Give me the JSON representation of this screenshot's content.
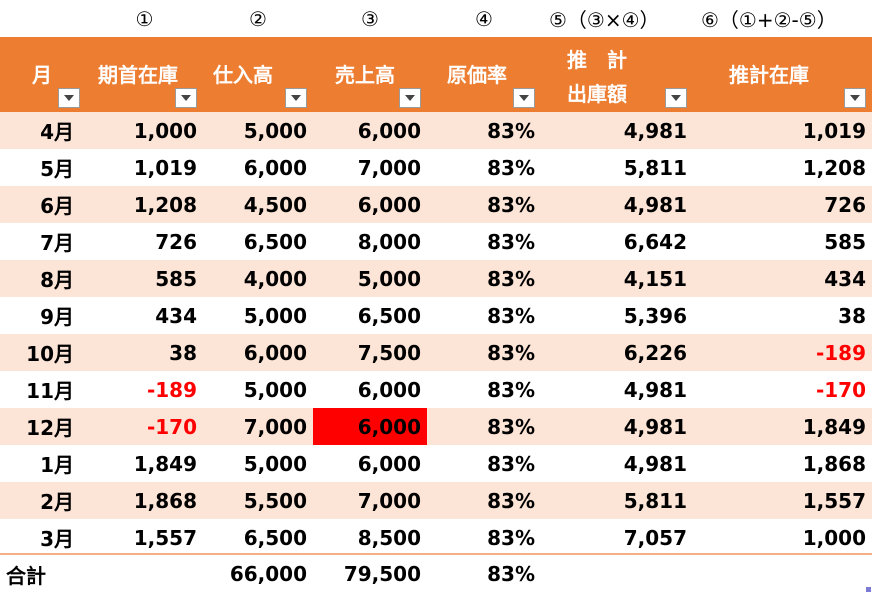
{
  "markers": [
    "",
    "①",
    "②",
    "③",
    "④",
    "⑤（③×④）",
    "⑥（①+②-⑤）"
  ],
  "headers": [
    {
      "text": "月"
    },
    {
      "text": "期首在庫"
    },
    {
      "text": "仕入高"
    },
    {
      "text": "売上高"
    },
    {
      "text": "原価率"
    },
    {
      "line1": "推　計",
      "line2": "出庫額"
    },
    {
      "text": "推計在庫"
    }
  ],
  "rows": [
    {
      "month": "4月",
      "opening": "1,000",
      "purchases": "5,000",
      "sales": "6,000",
      "cost_rate": "83%",
      "est_shipment": "4,981",
      "est_inventory": "1,019"
    },
    {
      "month": "5月",
      "opening": "1,019",
      "purchases": "6,000",
      "sales": "7,000",
      "cost_rate": "83%",
      "est_shipment": "5,811",
      "est_inventory": "1,208"
    },
    {
      "month": "6月",
      "opening": "1,208",
      "purchases": "4,500",
      "sales": "6,000",
      "cost_rate": "83%",
      "est_shipment": "4,981",
      "est_inventory": "726"
    },
    {
      "month": "7月",
      "opening": "726",
      "purchases": "6,500",
      "sales": "8,000",
      "cost_rate": "83%",
      "est_shipment": "6,642",
      "est_inventory": "585"
    },
    {
      "month": "8月",
      "opening": "585",
      "purchases": "4,000",
      "sales": "5,000",
      "cost_rate": "83%",
      "est_shipment": "4,151",
      "est_inventory": "434"
    },
    {
      "month": "9月",
      "opening": "434",
      "purchases": "5,000",
      "sales": "6,500",
      "cost_rate": "83%",
      "est_shipment": "5,396",
      "est_inventory": "38"
    },
    {
      "month": "10月",
      "opening": "38",
      "purchases": "6,000",
      "sales": "7,500",
      "cost_rate": "83%",
      "est_shipment": "6,226",
      "est_inventory": "-189"
    },
    {
      "month": "11月",
      "opening": "-189",
      "purchases": "5,000",
      "sales": "6,000",
      "cost_rate": "83%",
      "est_shipment": "4,981",
      "est_inventory": "-170"
    },
    {
      "month": "12月",
      "opening": "-170",
      "purchases": "7,000",
      "sales": "6,000",
      "cost_rate": "83%",
      "est_shipment": "4,981",
      "est_inventory": "1,849"
    },
    {
      "month": "1月",
      "opening": "1,849",
      "purchases": "5,000",
      "sales": "6,000",
      "cost_rate": "83%",
      "est_shipment": "4,981",
      "est_inventory": "1,868"
    },
    {
      "month": "2月",
      "opening": "1,868",
      "purchases": "5,500",
      "sales": "7,000",
      "cost_rate": "83%",
      "est_shipment": "5,811",
      "est_inventory": "1,557"
    },
    {
      "month": "3月",
      "opening": "1,557",
      "purchases": "6,500",
      "sales": "8,500",
      "cost_rate": "83%",
      "est_shipment": "7,057",
      "est_inventory": "1,000"
    }
  ],
  "total": {
    "label": "合計",
    "opening": "",
    "purchases": "66,000",
    "sales": "79,500",
    "cost_rate": "83%",
    "est_shipment": "",
    "est_inventory": ""
  },
  "colors": {
    "header_bg": "#ED7D31",
    "band": "#FCE4D6",
    "negative": "#FF0000",
    "highlight_cell": "#FF0000"
  },
  "highlight": {
    "row": 8,
    "column": "sales"
  }
}
